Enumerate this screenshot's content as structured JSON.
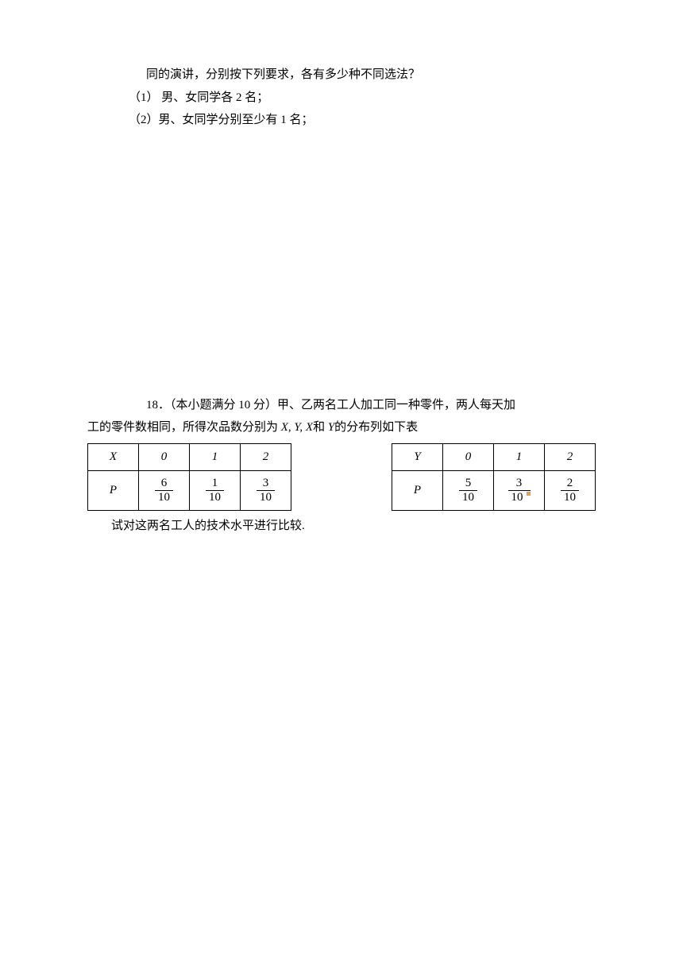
{
  "intro": {
    "line1": "同的演讲，分别按下列要求，各有多少种不同选法？",
    "sub1": "（1） 男、女同学各 2 名；",
    "sub2": "（2）男、女同学分别至少有 1 名；"
  },
  "q18": {
    "lead": "18．（本小题满分 10 分）甲、乙两名工人加工同一种零件，两人每天加",
    "cont": "工的零件数相同，所得次品数分别为 ",
    "vars": "X, Y, X",
    "mid": "和 ",
    "var_y": "Y",
    "end": "的分布列如下表"
  },
  "tableX": {
    "header": [
      "X",
      "0",
      "1",
      "2"
    ],
    "rowLabel": "P",
    "fractions": [
      {
        "num": "6",
        "den": "10"
      },
      {
        "num": "1",
        "den": "10"
      },
      {
        "num": "3",
        "den": "10"
      }
    ]
  },
  "tableY": {
    "header": [
      "Y",
      "0",
      "1",
      "2"
    ],
    "rowLabel": "P",
    "fractions": [
      {
        "num": "5",
        "den": "10"
      },
      {
        "num": "3",
        "den": "10"
      },
      {
        "num": "2",
        "den": "10"
      }
    ]
  },
  "final": "试对这两名工人的技术水平进行比较.",
  "colors": {
    "text": "#000000",
    "background": "#ffffff",
    "border": "#000000",
    "marker": "#d9a84e"
  }
}
